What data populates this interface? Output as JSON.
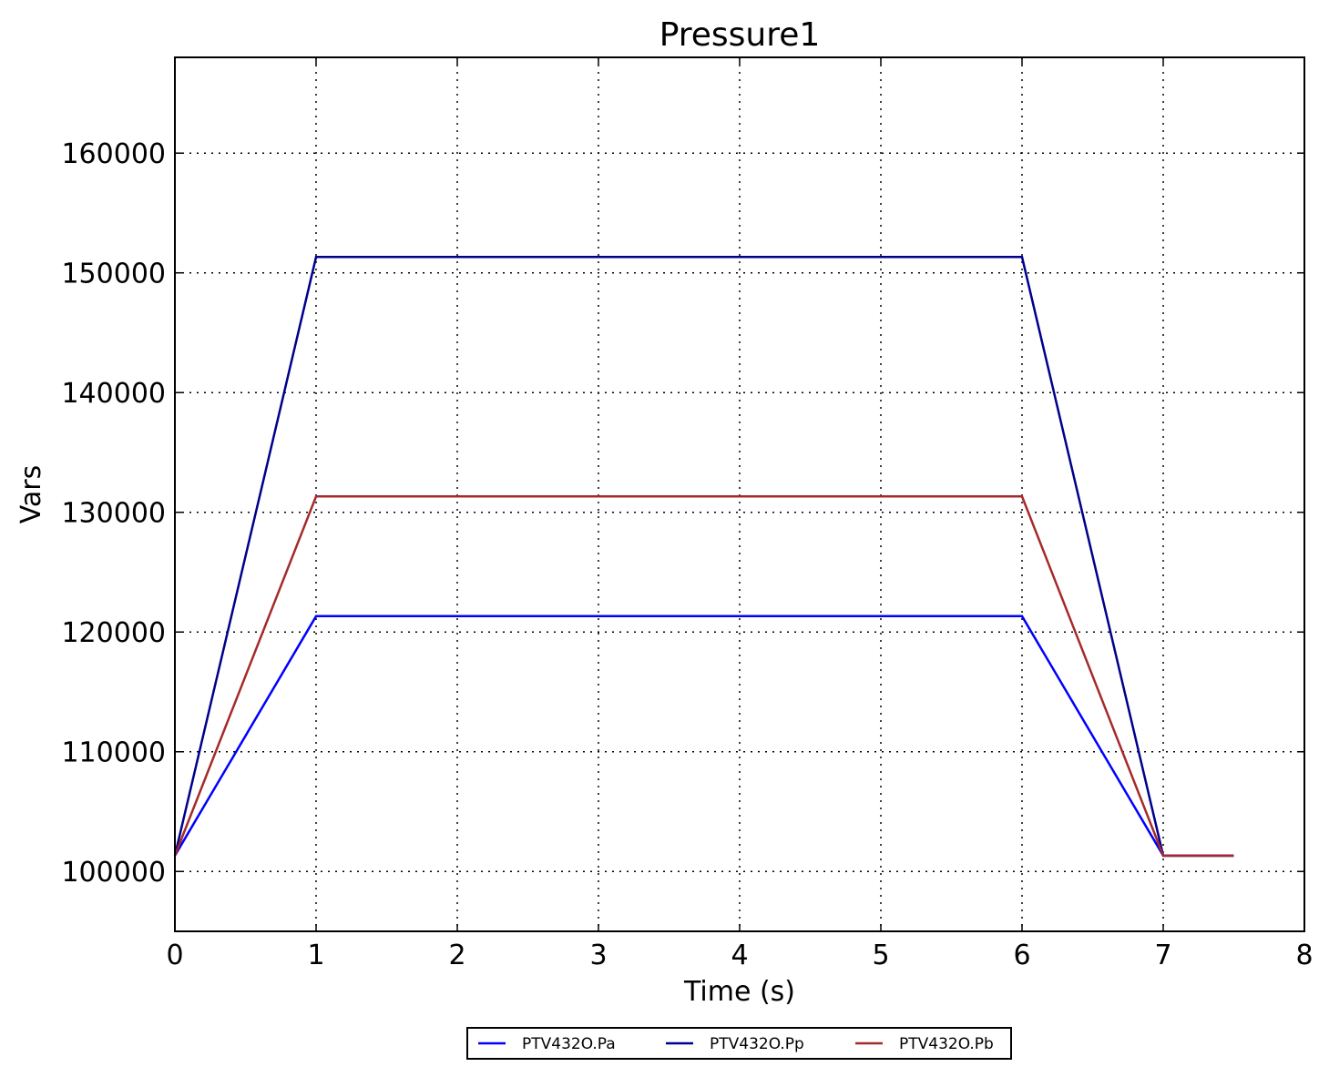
{
  "chart_data": {
    "type": "line",
    "title": "Pressure1",
    "xlabel": "Time (s)",
    "ylabel": "Vars",
    "xlim": [
      0,
      8
    ],
    "ylim": [
      95000,
      168000
    ],
    "xticks": [
      0,
      1,
      2,
      3,
      4,
      5,
      6,
      7,
      8
    ],
    "xtick_labels": [
      "0",
      "1",
      "2",
      "3",
      "4",
      "5",
      "6",
      "7",
      "8"
    ],
    "yticks": [
      100000,
      110000,
      120000,
      130000,
      140000,
      150000,
      160000
    ],
    "ytick_labels": [
      "100000",
      "110000",
      "120000",
      "130000",
      "140000",
      "150000",
      "160000"
    ],
    "grid": true,
    "legend_position": "bottom-center",
    "series": [
      {
        "name": "PTV432O.Pa",
        "color": "#0000ff",
        "x": [
          0,
          1,
          6,
          7,
          7.5
        ],
        "y": [
          101325,
          121325,
          121325,
          101325,
          101325
        ]
      },
      {
        "name": "PTV432O.Pp",
        "color": "#00008b",
        "x": [
          0,
          1,
          6,
          7,
          7.5
        ],
        "y": [
          101325,
          151325,
          151325,
          101325,
          101325
        ]
      },
      {
        "name": "PTV432O.Pb",
        "color": "#a52a2a",
        "x": [
          0,
          1,
          6,
          7,
          7.5
        ],
        "y": [
          101325,
          131325,
          131325,
          101325,
          101325
        ]
      }
    ]
  }
}
